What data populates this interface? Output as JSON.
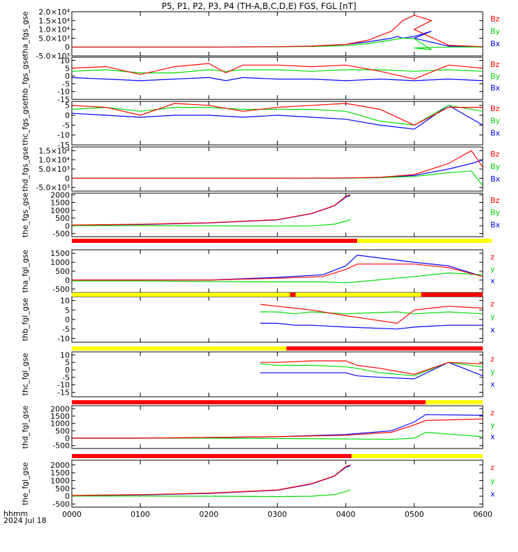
{
  "title": "P5, P1, P2, P3, P4 (TH-A,B,C,D,E) FGS, FGL [nT]",
  "footer": {
    "xaxis_label": "hhmm",
    "date": "2024 Jul 18"
  },
  "colors": {
    "x": "#0000ff",
    "y": "#00dd00",
    "z": "#ff0000",
    "mode_fast": "#ff0000",
    "mode_slow": "#ffff00",
    "mode_burst": "#000000"
  },
  "chart_data": [
    {
      "type": "line",
      "ylabel": "tha_fgs_gse",
      "yticks": [
        "-5.0×10³",
        "0",
        "5.0×10³",
        "1.0×10⁴",
        "1.5×10⁴",
        "2.0×10⁴"
      ],
      "ylim": [
        -5000,
        20000
      ],
      "legend": [
        "Bz",
        "By",
        "Bx"
      ],
      "x": [
        "0000",
        "0100",
        "0200",
        "0300",
        "0330",
        "0400",
        "0420",
        "0440",
        "0445",
        "0450",
        "0460",
        "0475",
        "0500",
        "0530",
        "0600"
      ],
      "series": [
        {
          "name": "Bz",
          "values": [
            0,
            0,
            0,
            200,
            500,
            1500,
            4000,
            9000,
            12000,
            15000,
            18000,
            15000,
            10000,
            1000,
            200
          ]
        },
        {
          "name": "By",
          "values": [
            0,
            0,
            0,
            100,
            300,
            800,
            2000,
            4000,
            4500,
            5000,
            4800,
            -1500,
            -500,
            0,
            0
          ]
        },
        {
          "name": "Bx",
          "values": [
            0,
            0,
            0,
            150,
            500,
            1500,
            3000,
            5000,
            6000,
            5000,
            6000,
            9000,
            5000,
            500,
            100
          ]
        }
      ]
    },
    {
      "type": "line",
      "ylabel": "thb_fgs_gse",
      "yticks": [
        "-15",
        "-10",
        "-5",
        "0",
        "5",
        "10"
      ],
      "ylim": [
        -15,
        12
      ],
      "legend": [
        "Bz",
        "By",
        "Bx"
      ],
      "x": [
        "0000",
        "0030",
        "0100",
        "0130",
        "0200",
        "0215",
        "0230",
        "0300",
        "0330",
        "0400",
        "0430",
        "0500",
        "0530",
        "0600"
      ],
      "series": [
        {
          "name": "Bz",
          "values": [
            5,
            6,
            1,
            6,
            8,
            2,
            7,
            7,
            6,
            7,
            3,
            -2,
            7,
            5
          ]
        },
        {
          "name": "By",
          "values": [
            3,
            4,
            2,
            2,
            4,
            3,
            4,
            4,
            3,
            4,
            4,
            3,
            4,
            3
          ]
        },
        {
          "name": "Bx",
          "values": [
            -1,
            -2,
            -3,
            -2,
            -1,
            -3,
            -1,
            -2,
            -2,
            -3,
            -2,
            -3,
            -2,
            -3
          ]
        }
      ]
    },
    {
      "type": "line",
      "ylabel": "thc_fgs_gse",
      "yticks": [
        "-15",
        "-10",
        "-5",
        "0",
        "5"
      ],
      "ylim": [
        -15,
        7
      ],
      "legend": [
        "Bz",
        "By",
        "Bx"
      ],
      "x": [
        "0000",
        "0030",
        "0100",
        "0130",
        "0200",
        "0230",
        "0300",
        "0330",
        "0400",
        "0430",
        "0500",
        "0530",
        "0600"
      ],
      "series": [
        {
          "name": "Bz",
          "values": [
            5,
            4,
            0,
            6,
            5,
            2,
            4,
            5,
            6,
            3,
            -5,
            4,
            4
          ]
        },
        {
          "name": "By",
          "values": [
            3,
            4,
            2,
            4,
            4,
            3,
            3,
            3,
            2,
            -3,
            -5,
            5,
            2
          ]
        },
        {
          "name": "Bx",
          "values": [
            1,
            0,
            -1,
            0,
            0,
            -1,
            0,
            -1,
            -2,
            -5,
            -7,
            5,
            -5
          ]
        }
      ]
    },
    {
      "type": "line",
      "ylabel": "thd_fgs_gse",
      "yticks": [
        "-5.0×10³",
        "0",
        "5.0×10³",
        "1.0×10⁴",
        "1.5×10⁴"
      ],
      "ylim": [
        -7000,
        17000
      ],
      "legend": [
        "Bz",
        "By",
        "Bx"
      ],
      "x": [
        "0000",
        "0100",
        "0200",
        "0300",
        "0400",
        "0430",
        "0500",
        "0530",
        "0550",
        "0600"
      ],
      "series": [
        {
          "name": "Bz",
          "values": [
            0,
            0,
            0,
            0,
            200,
            500,
            2000,
            8000,
            15000,
            6000
          ]
        },
        {
          "name": "By",
          "values": [
            0,
            0,
            0,
            0,
            100,
            300,
            1000,
            3000,
            4000,
            -4000
          ]
        },
        {
          "name": "Bx",
          "values": [
            0,
            0,
            0,
            0,
            100,
            300,
            1500,
            5000,
            8000,
            10000
          ]
        }
      ]
    },
    {
      "type": "line",
      "ylabel": "the_fgs_gse",
      "yticks": [
        "-500",
        "0",
        "500",
        "1000",
        "1500",
        "2000"
      ],
      "ylim": [
        -700,
        2100
      ],
      "legend": [
        "Bz",
        "By",
        "Bx"
      ],
      "x": [
        "0000",
        "0100",
        "0200",
        "0300",
        "0330",
        "0350",
        "0400",
        "0404"
      ],
      "series": [
        {
          "name": "Bz",
          "values": [
            50,
            100,
            200,
            400,
            800,
            1300,
            1900,
            2000
          ]
        },
        {
          "name": "By",
          "values": [
            10,
            10,
            0,
            -20,
            0,
            100,
            300,
            400
          ]
        },
        {
          "name": "Bx",
          "values": [
            40,
            80,
            180,
            380,
            780,
            1280,
            1850,
            1950
          ]
        }
      ]
    },
    {
      "type": "line",
      "ylabel": "tha_fgl_gse",
      "yticks": [
        "-500",
        "0",
        "500",
        "1000",
        "1500"
      ],
      "ylim": [
        -700,
        1700
      ],
      "legend": [
        "z",
        "y",
        "x"
      ],
      "x": [
        "0000",
        "0100",
        "0200",
        "0300",
        "0340",
        "0400",
        "0410",
        "0500",
        "0530",
        "0600"
      ],
      "series": [
        {
          "name": "z",
          "values": [
            0,
            0,
            0,
            100,
            200,
            600,
            900,
            900,
            700,
            200
          ]
        },
        {
          "name": "y",
          "values": [
            -50,
            -50,
            -80,
            -100,
            -100,
            -150,
            -100,
            200,
            400,
            300
          ]
        },
        {
          "name": "x",
          "values": [
            0,
            0,
            0,
            150,
            300,
            800,
            1400,
            1000,
            800,
            200
          ]
        }
      ]
    },
    {
      "type": "line",
      "ylabel": "thb_fgl_gse",
      "yticks": [
        "-10",
        "-5",
        "0",
        "5",
        "10"
      ],
      "ylim": [
        -12,
        12
      ],
      "legend": [
        "z",
        "y",
        "x"
      ],
      "x": [
        "0245",
        "0300",
        "0315",
        "0330",
        "0400",
        "0445",
        "0500",
        "0530",
        "0600"
      ],
      "series": [
        {
          "name": "z",
          "values": [
            8,
            7,
            6,
            5,
            2,
            -2,
            5,
            7,
            6
          ]
        },
        {
          "name": "y",
          "values": [
            4,
            4,
            3,
            4,
            3,
            4,
            3,
            4,
            3
          ]
        },
        {
          "name": "x",
          "values": [
            -2,
            -2,
            -3,
            -3,
            -4,
            -5,
            -4,
            -3,
            -3
          ]
        }
      ]
    },
    {
      "type": "line",
      "ylabel": "thc_fgl_gse",
      "yticks": [
        "-15",
        "-10",
        "-5",
        "0",
        "5",
        "10"
      ],
      "ylim": [
        -18,
        12
      ],
      "legend": [
        "z",
        "y",
        "x"
      ],
      "x": [
        "0245",
        "0300",
        "0330",
        "0400",
        "0410",
        "0430",
        "0500",
        "0530",
        "0600"
      ],
      "series": [
        {
          "name": "z",
          "values": [
            5,
            5,
            6,
            6,
            3,
            1,
            -3,
            5,
            4
          ]
        },
        {
          "name": "y",
          "values": [
            4,
            3,
            3,
            2,
            1,
            -2,
            -4,
            5,
            2
          ]
        },
        {
          "name": "x",
          "values": [
            -2,
            -2,
            -2,
            -2,
            -4,
            -5,
            -6,
            5,
            -4
          ]
        }
      ]
    },
    {
      "type": "line",
      "ylabel": "thd_fgl_gse",
      "yticks": [
        "-500",
        "0",
        "500",
        "1000",
        "1500",
        "2000"
      ],
      "ylim": [
        -700,
        2200
      ],
      "legend": [
        "z",
        "y",
        "x"
      ],
      "x": [
        "0000",
        "0100",
        "0200",
        "0300",
        "0400",
        "0440",
        "0500",
        "0510",
        "0600"
      ],
      "series": [
        {
          "name": "z",
          "values": [
            0,
            0,
            50,
            100,
            200,
            400,
            900,
            1200,
            1300
          ]
        },
        {
          "name": "y",
          "values": [
            0,
            0,
            0,
            -20,
            -50,
            -80,
            0,
            400,
            100
          ]
        },
        {
          "name": "x",
          "values": [
            0,
            0,
            50,
            100,
            250,
            500,
            1100,
            1600,
            1550
          ]
        }
      ]
    },
    {
      "type": "line",
      "ylabel": "the_fgl_gse",
      "yticks": [
        "-500",
        "0",
        "500",
        "1000",
        "1500",
        "2000"
      ],
      "ylim": [
        -700,
        2300
      ],
      "legend": [
        "z",
        "y",
        "x"
      ],
      "x": [
        "0000",
        "0100",
        "0200",
        "0300",
        "0330",
        "0350",
        "0400",
        "0404"
      ],
      "series": [
        {
          "name": "z",
          "values": [
            50,
            100,
            200,
            400,
            800,
            1300,
            1900,
            2000
          ]
        },
        {
          "name": "y",
          "values": [
            10,
            10,
            0,
            -20,
            0,
            100,
            300,
            400
          ]
        },
        {
          "name": "x",
          "values": [
            40,
            80,
            180,
            380,
            780,
            1280,
            1850,
            1950
          ]
        }
      ]
    }
  ],
  "mode_bars": [
    [
      {
        "from": "0000",
        "to": "0410",
        "mode": "fast"
      },
      {
        "from": "0410",
        "to": "0568",
        "mode": "slow"
      },
      {
        "from": "0568",
        "to": "0600",
        "mode": "fast"
      }
    ],
    [
      {
        "from": "0000",
        "to": "0268",
        "mode": "slow"
      },
      {
        "from": "0268",
        "to": "0303",
        "mode": "fast"
      },
      {
        "from": "0303",
        "to": "0311",
        "mode": "slow"
      },
      {
        "from": "0311",
        "to": "0316",
        "mode": "fast"
      },
      {
        "from": "0316",
        "to": "0466",
        "mode": "slow"
      },
      {
        "from": "0466",
        "to": "0600",
        "mode": "fast"
      }
    ],
    [
      {
        "from": "0000",
        "to": "0268",
        "mode": "slow"
      },
      {
        "from": "0268",
        "to": "0600",
        "mode": "fast"
      }
    ],
    [
      {
        "from": "0000",
        "to": "0510",
        "mode": "fast"
      },
      {
        "from": "0510",
        "to": "0600",
        "mode": "slow"
      }
    ],
    [
      {
        "from": "0000",
        "to": "0405",
        "mode": "fast"
      },
      {
        "from": "0405",
        "to": "0600",
        "mode": "slow"
      }
    ]
  ],
  "xticks": [
    "0000",
    "0100",
    "0200",
    "0300",
    "0400",
    "0500",
    "0600"
  ]
}
